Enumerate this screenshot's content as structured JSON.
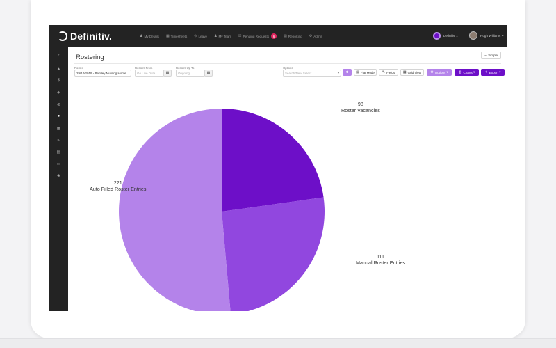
{
  "app": {
    "brand": "Definitiv."
  },
  "nav": {
    "items": [
      {
        "icon": "♟",
        "label": "My Details"
      },
      {
        "icon": "▦",
        "label": "Timesheets"
      },
      {
        "icon": "⊙",
        "label": "Leave"
      },
      {
        "icon": "♟",
        "label": "My Team"
      },
      {
        "icon": "☑",
        "label": "Pending Requests",
        "badge": "6"
      },
      {
        "icon": "▤",
        "label": "Reporting"
      },
      {
        "icon": "⚙",
        "label": "Admin"
      }
    ]
  },
  "header": {
    "org": "Definitiv",
    "user": "Hugh Williams"
  },
  "sidebar": {
    "icons": [
      "›",
      "♟",
      "$",
      "✈",
      "⊛",
      "●",
      "▦",
      "∿",
      "▤",
      "▭",
      "◈"
    ]
  },
  "page": {
    "title": "Rostering",
    "view_button": "Simple"
  },
  "filters": {
    "roster_label": "Roster",
    "roster_value": "29/10/2019 - Bentley Nursing Home",
    "from_label": "Rosters From",
    "from_placeholder": "Go Live Date",
    "upto_label": "Rosters Up To",
    "upto_placeholder": "Ongoing",
    "options_label": "Options",
    "options_placeholder": "Search/New Select"
  },
  "toolbar": {
    "flat_mode": "Flat Mode",
    "fields": "Fields",
    "grid_view": "Grid View",
    "options": "Options",
    "charts": "Charts",
    "export": "Export"
  },
  "colors": {
    "accent_dark": "#6d0fc8",
    "accent_mid": "#9147df",
    "accent_light": "#b483ea",
    "topbar": "#232323"
  },
  "chart_data": {
    "type": "pie",
    "slices": [
      {
        "label": "Roster Vacancies",
        "value": 98,
        "color": "#6d0fc8"
      },
      {
        "label": "Manual Roster Entries",
        "value": 111,
        "color": "#9147df"
      },
      {
        "label": "Auto Filled Roster Entries",
        "value": 221,
        "color": "#b483ea"
      }
    ]
  }
}
